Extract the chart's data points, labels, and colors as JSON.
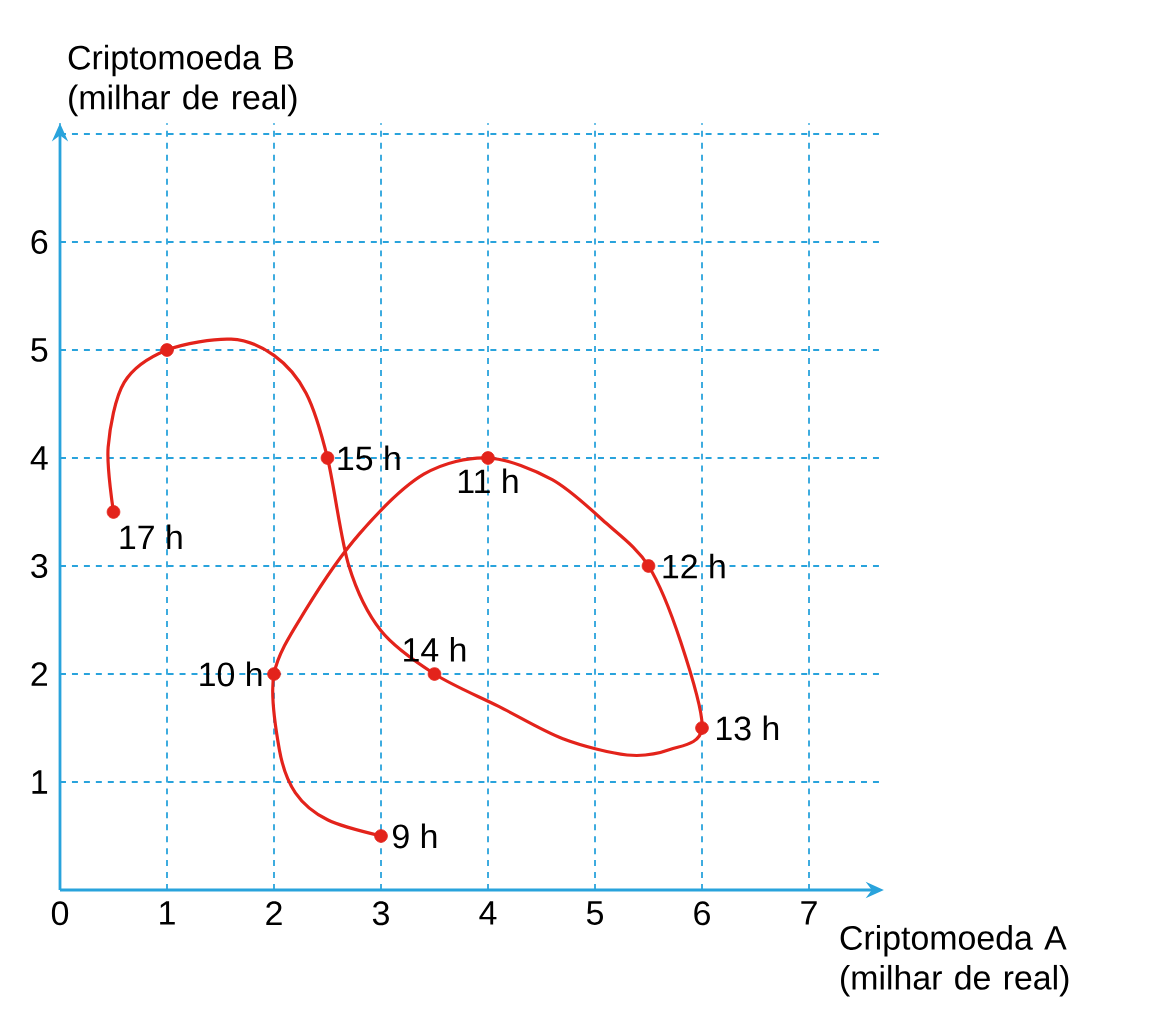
{
  "chart_data": {
    "type": "line",
    "xlabel": "Criptomoeda A (milhar de real)",
    "ylabel": "Criptomoeda B (milhar de real)",
    "xlim": [
      0,
      7.7
    ],
    "ylim": [
      0,
      7.1
    ],
    "xticks": [
      0,
      1,
      2,
      3,
      4,
      5,
      6,
      7
    ],
    "yticks": [
      1,
      2,
      3,
      4,
      5,
      6,
      {
        "value": 7,
        "label": null
      }
    ],
    "grid": true,
    "series": [
      {
        "color": "#e3231b",
        "marker": "none",
        "line_style": "solid",
        "x": [
          3,
          2.5,
          2.2,
          2.05,
          2,
          2.3,
          2.8,
          3.4,
          4,
          4.6,
          5.1,
          5.5,
          5.8,
          6,
          5.7,
          5.3,
          4.7,
          4.1,
          3.5,
          3,
          2.7,
          2.5,
          2.3,
          2,
          1.6,
          1,
          0.6,
          0.45,
          0.5
        ],
        "values": [
          0.5,
          0.65,
          0.9,
          1.3,
          2,
          2.6,
          3.3,
          3.85,
          4,
          3.8,
          3.4,
          3,
          2.3,
          1.5,
          1.3,
          1.25,
          1.4,
          1.7,
          2,
          2.4,
          3,
          4,
          4.6,
          4.95,
          5.1,
          5,
          4.7,
          4.1,
          3.5
        ]
      },
      {
        "type": "scatter",
        "color": "#e3231b",
        "marker": "circle",
        "x": [
          3,
          2,
          4,
          5.5,
          6,
          3.5,
          2.5,
          1,
          0.5
        ],
        "values": [
          0.5,
          2,
          4,
          3,
          1.5,
          2,
          4,
          5,
          3.5
        ]
      }
    ],
    "annotations": [
      {
        "text": "9 h",
        "x": 3,
        "y": 0.5
      },
      {
        "text": "10 h",
        "x": 2,
        "y": 2
      },
      {
        "text": "11 h",
        "x": 4,
        "y": 4
      },
      {
        "text": "12 h",
        "x": 5.5,
        "y": 3
      },
      {
        "text": "13 h",
        "x": 6,
        "y": 1.5
      },
      {
        "text": "14 h",
        "x": 3.5,
        "y": 2
      },
      {
        "text": "15 h",
        "x": 2.5,
        "y": 4
      },
      {
        "text": "17 h",
        "x": 0.5,
        "y": 3.5
      }
    ]
  }
}
